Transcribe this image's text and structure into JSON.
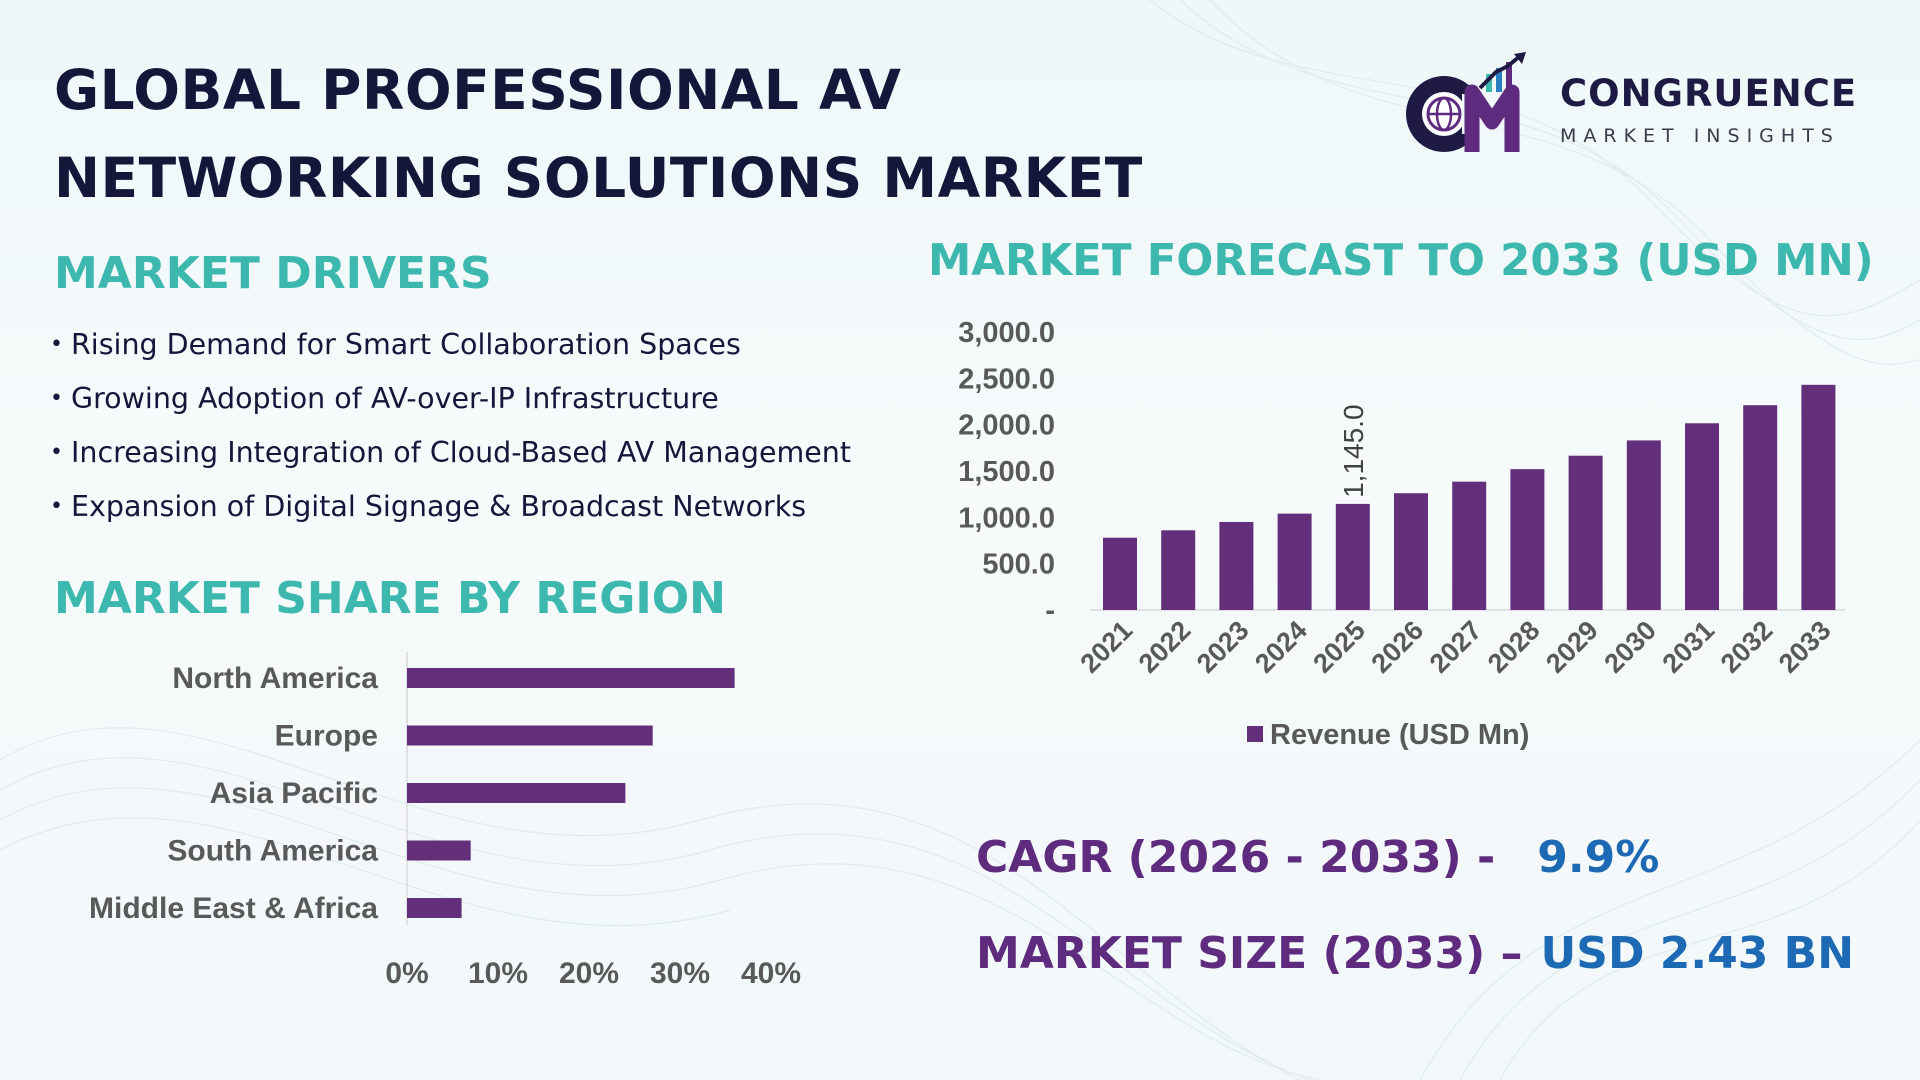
{
  "header": {
    "title_line1": "GLOBAL PROFESSIONAL AV",
    "title_line2": "NETWORKING SOLUTIONS MARKET"
  },
  "logo": {
    "brand": "CONGRUENCE",
    "subtitle": "MARKET INSIGHTS",
    "icon": "globe-cm-growth-icon"
  },
  "drivers": {
    "heading": "MARKET DRIVERS",
    "items": [
      "Rising Demand for Smart Collaboration Spaces",
      "Growing Adoption of AV-over-IP Infrastructure",
      "Increasing Integration of Cloud-Based AV Management",
      "Expansion of Digital Signage & Broadcast Networks"
    ]
  },
  "colors": {
    "bar": "#632e7a",
    "heading_teal": "#3cb8ae",
    "title_navy": "#14163a",
    "value_blue": "#1d69b3",
    "label_purple": "#5e2b7e"
  },
  "region": {
    "heading": "MARKET SHARE BY REGION"
  },
  "forecast": {
    "heading": "MARKET FORECAST TO 2033 (USD MN)"
  },
  "chart_data": [
    {
      "type": "bar",
      "orientation": "horizontal",
      "categories": [
        "North America",
        "Europe",
        "Asia Pacific",
        "South America",
        "Middle East & Africa"
      ],
      "values": [
        36,
        27,
        24,
        7,
        6
      ],
      "unit": "%",
      "xlim": [
        0,
        40
      ],
      "x_ticks": [
        "0%",
        "10%",
        "20%",
        "30%",
        "40%"
      ],
      "grid": false
    },
    {
      "type": "bar",
      "orientation": "vertical",
      "categories": [
        "2021",
        "2022",
        "2023",
        "2024",
        "2025",
        "2026",
        "2027",
        "2028",
        "2029",
        "2030",
        "2031",
        "2032",
        "2033"
      ],
      "series": [
        {
          "name": "Revenue (USD Mn)",
          "values": [
            780,
            860,
            950,
            1040,
            1145,
            1260,
            1385,
            1520,
            1665,
            1830,
            2015,
            2210,
            2430
          ]
        }
      ],
      "data_labels": [
        {
          "category": "2025",
          "text": "1,145.0"
        }
      ],
      "ylim": [
        0,
        3000
      ],
      "y_ticks": [
        "-",
        "500.0",
        "1,000.0",
        "1,500.0",
        "2,000.0",
        "2,500.0",
        "3,000.0"
      ],
      "legend": "bottom",
      "grid": false
    }
  ],
  "stats": {
    "cagr_label": "CAGR (2026 - 2033) -",
    "cagr_value": "9.9%",
    "size_label": "MARKET SIZE (2033) –",
    "size_value": "USD 2.43 BN"
  }
}
